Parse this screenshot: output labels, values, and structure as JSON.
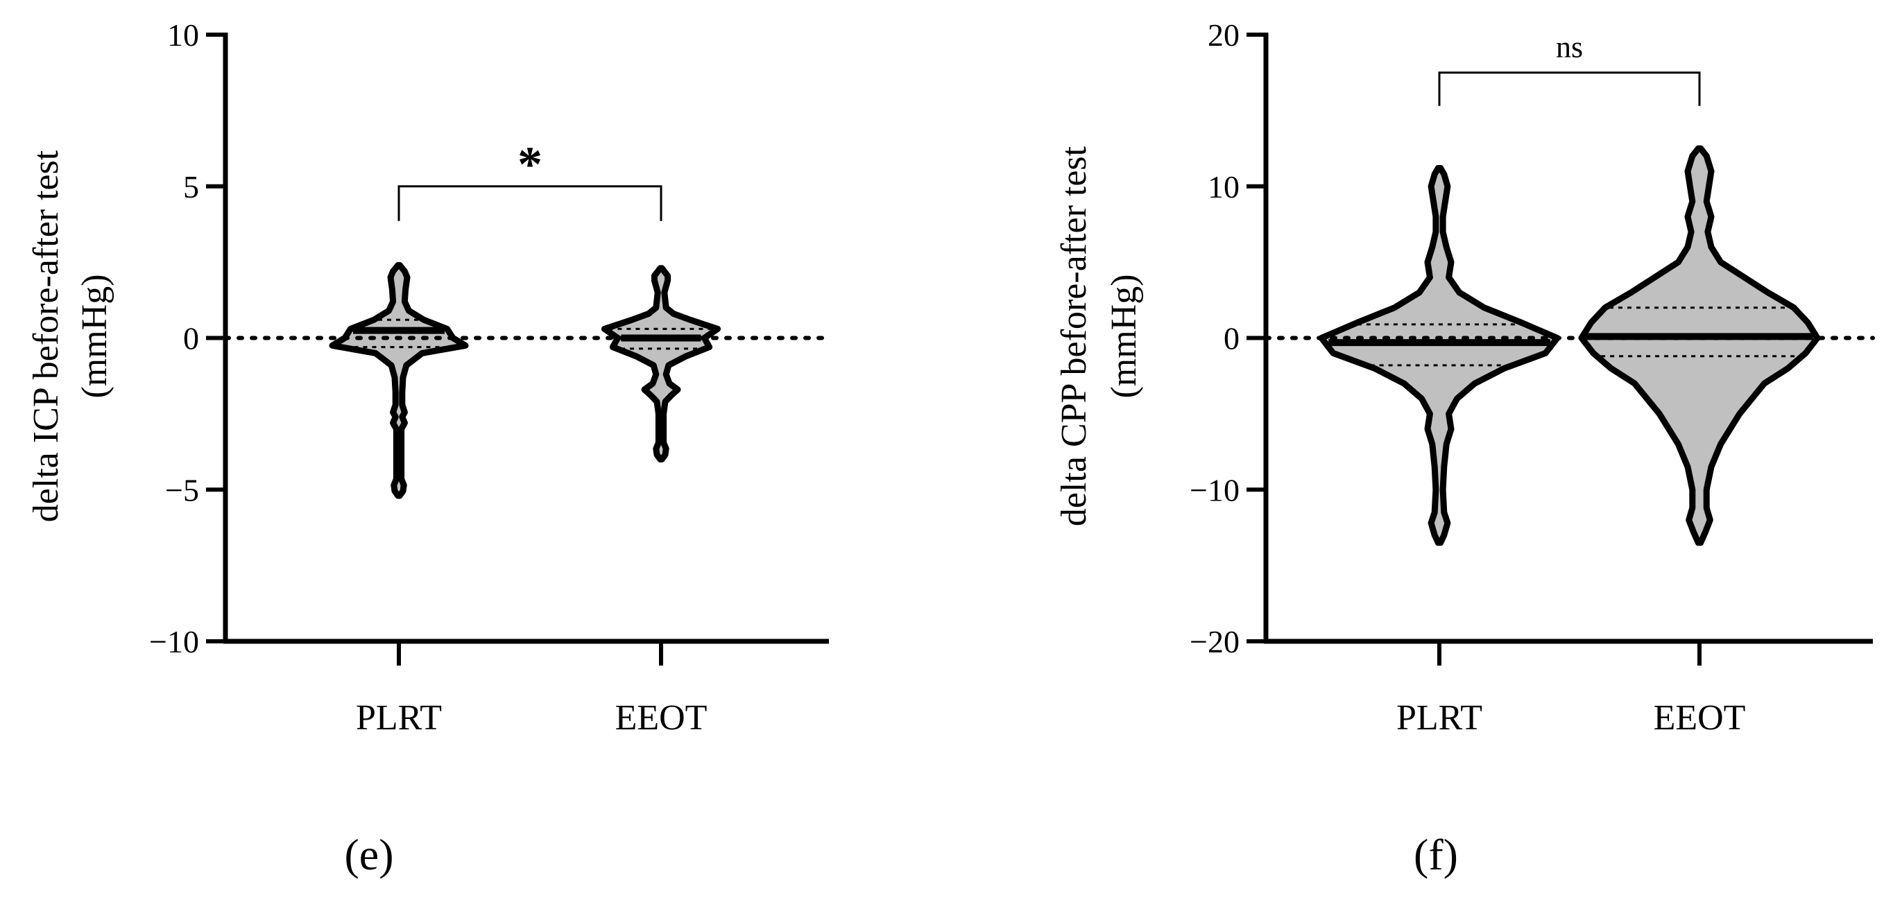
{
  "colors": {
    "violin_fill": "#c0c0c0",
    "stroke": "#000000",
    "background": "#ffffff"
  },
  "chart_data": [
    {
      "type": "violin",
      "panel_label": "(e)",
      "ylabel_line1": "delta ICP before-after test",
      "ylabel_line2": "(mmHg)",
      "ylim": [
        -10,
        10
      ],
      "yticks": [
        -10,
        -5,
        0,
        5,
        10
      ],
      "ytick_labels": [
        "−10",
        "−5",
        "0",
        "5",
        "10"
      ],
      "categories": [
        "PLRT",
        "EEOT"
      ],
      "reference_line": 0,
      "significance": {
        "groups": [
          "PLRT",
          "EEOT"
        ],
        "label": "*",
        "level": 5
      },
      "violins": [
        {
          "category": "PLRT",
          "median": 0.25,
          "q1": -0.3,
          "q3": 0.6,
          "min": -5.2,
          "max": 2.4,
          "profile": [
            [
              -5.2,
              0.01
            ],
            [
              -5.05,
              0.05
            ],
            [
              -4.85,
              0.06
            ],
            [
              -4.65,
              0.03
            ],
            [
              -4.2,
              0.03
            ],
            [
              -3.5,
              0.03
            ],
            [
              -3.0,
              0.03
            ],
            [
              -2.8,
              0.07
            ],
            [
              -2.6,
              0.04
            ],
            [
              -2.45,
              0.07
            ],
            [
              -2.2,
              0.04
            ],
            [
              -1.8,
              0.04
            ],
            [
              -1.3,
              0.05
            ],
            [
              -0.9,
              0.09
            ],
            [
              -0.5,
              0.28
            ],
            [
              -0.25,
              0.8
            ],
            [
              0.0,
              0.65
            ],
            [
              0.3,
              0.58
            ],
            [
              0.6,
              0.3
            ],
            [
              0.9,
              0.12
            ],
            [
              1.2,
              0.07
            ],
            [
              1.6,
              0.08
            ],
            [
              2.0,
              0.1
            ],
            [
              2.2,
              0.07
            ],
            [
              2.4,
              0.01
            ]
          ]
        },
        {
          "category": "EEOT",
          "median": 0.0,
          "q1": -0.35,
          "q3": 0.3,
          "min": -4.0,
          "max": 2.3,
          "profile": [
            [
              -4.0,
              0.01
            ],
            [
              -3.85,
              0.05
            ],
            [
              -3.65,
              0.06
            ],
            [
              -3.45,
              0.03
            ],
            [
              -3.0,
              0.03
            ],
            [
              -2.5,
              0.03
            ],
            [
              -2.1,
              0.05
            ],
            [
              -1.9,
              0.12
            ],
            [
              -1.7,
              0.2
            ],
            [
              -1.5,
              0.1
            ],
            [
              -1.2,
              0.06
            ],
            [
              -0.9,
              0.09
            ],
            [
              -0.6,
              0.3
            ],
            [
              -0.3,
              0.58
            ],
            [
              0.0,
              0.52
            ],
            [
              0.3,
              0.68
            ],
            [
              0.6,
              0.35
            ],
            [
              0.8,
              0.15
            ],
            [
              1.0,
              0.06
            ],
            [
              1.5,
              0.04
            ],
            [
              1.9,
              0.08
            ],
            [
              2.05,
              0.08
            ],
            [
              2.3,
              0.01
            ]
          ]
        }
      ]
    },
    {
      "type": "violin",
      "panel_label": "(f)",
      "ylabel_line1": "delta CPP before-after test",
      "ylabel_line2": "(mmHg)",
      "ylim": [
        -20,
        20
      ],
      "yticks": [
        -20,
        -10,
        0,
        10,
        20
      ],
      "ytick_labels": [
        "−20",
        "−10",
        "0",
        "10",
        "20"
      ],
      "categories": [
        "PLRT",
        "EEOT"
      ],
      "reference_line": 0,
      "significance": {
        "groups": [
          "PLRT",
          "EEOT"
        ],
        "label": "ns",
        "level": 17.5
      },
      "violins": [
        {
          "category": "PLRT",
          "median": -0.3,
          "q1": -1.8,
          "q3": 0.9,
          "min": -13.5,
          "max": 11.2,
          "profile": [
            [
              -13.5,
              0.01
            ],
            [
              -13,
              0.04
            ],
            [
              -12.2,
              0.07
            ],
            [
              -11.5,
              0.04
            ],
            [
              -10,
              0.03
            ],
            [
              -8.5,
              0.04
            ],
            [
              -7,
              0.06
            ],
            [
              -6,
              0.1
            ],
            [
              -5,
              0.08
            ],
            [
              -4,
              0.15
            ],
            [
              -3,
              0.3
            ],
            [
              -2,
              0.55
            ],
            [
              -1,
              0.9
            ],
            [
              0,
              1.0
            ],
            [
              1,
              0.7
            ],
            [
              2,
              0.38
            ],
            [
              3,
              0.17
            ],
            [
              4,
              0.08
            ],
            [
              5,
              0.1
            ],
            [
              6,
              0.06
            ],
            [
              7,
              0.03
            ],
            [
              8,
              0.03
            ],
            [
              9,
              0.05
            ],
            [
              10,
              0.07
            ],
            [
              10.8,
              0.04
            ],
            [
              11.2,
              0.01
            ]
          ]
        },
        {
          "category": "EEOT",
          "median": 0.1,
          "q1": -1.2,
          "q3": 2.0,
          "min": -13.5,
          "max": 12.5,
          "profile": [
            [
              -13.5,
              0.01
            ],
            [
              -12.8,
              0.05
            ],
            [
              -12,
              0.09
            ],
            [
              -11.2,
              0.06
            ],
            [
              -10,
              0.06
            ],
            [
              -8.5,
              0.1
            ],
            [
              -7,
              0.18
            ],
            [
              -5,
              0.34
            ],
            [
              -3,
              0.55
            ],
            [
              -2,
              0.75
            ],
            [
              -1,
              0.9
            ],
            [
              0,
              1.0
            ],
            [
              1,
              0.92
            ],
            [
              2,
              0.8
            ],
            [
              3,
              0.58
            ],
            [
              4,
              0.38
            ],
            [
              5,
              0.18
            ],
            [
              6,
              0.1
            ],
            [
              7,
              0.07
            ],
            [
              8,
              0.1
            ],
            [
              9,
              0.06
            ],
            [
              10,
              0.08
            ],
            [
              11,
              0.1
            ],
            [
              12,
              0.06
            ],
            [
              12.5,
              0.01
            ]
          ]
        }
      ]
    }
  ]
}
